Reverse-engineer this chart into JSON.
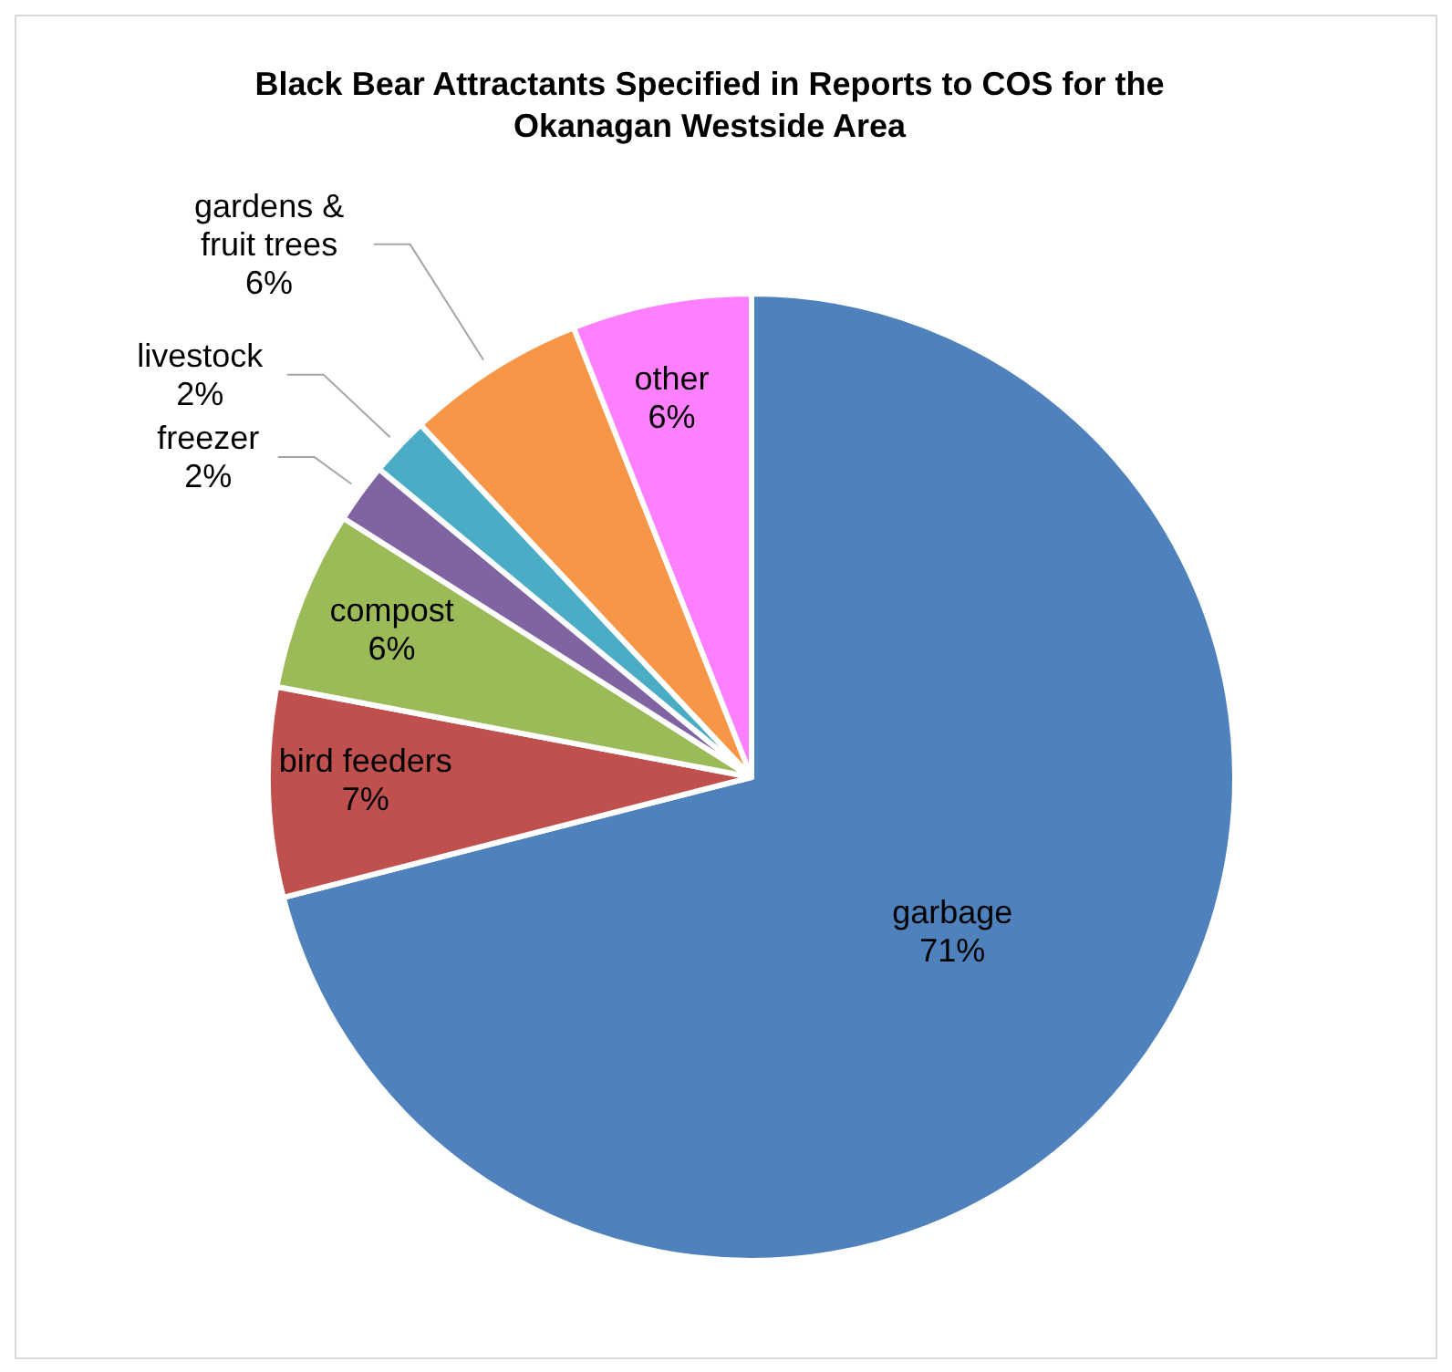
{
  "chart_data": {
    "type": "pie",
    "title": "Black Bear Attractants Specified in Reports to COS for the Okanagan Westside Area",
    "categories": [
      "garbage",
      "bird feeders",
      "compost",
      "freezer",
      "livestock",
      "gardens & fruit trees",
      "other"
    ],
    "values": [
      71,
      7,
      6,
      2,
      2,
      6,
      6
    ],
    "value_labels": [
      "71%",
      "7%",
      "6%",
      "2%",
      "2%",
      "6%",
      "6%"
    ],
    "colors": [
      "#4f81bd",
      "#c0504d",
      "#9bbb59",
      "#8064a2",
      "#4bacc6",
      "#f79646",
      "#ff80ff"
    ]
  }
}
